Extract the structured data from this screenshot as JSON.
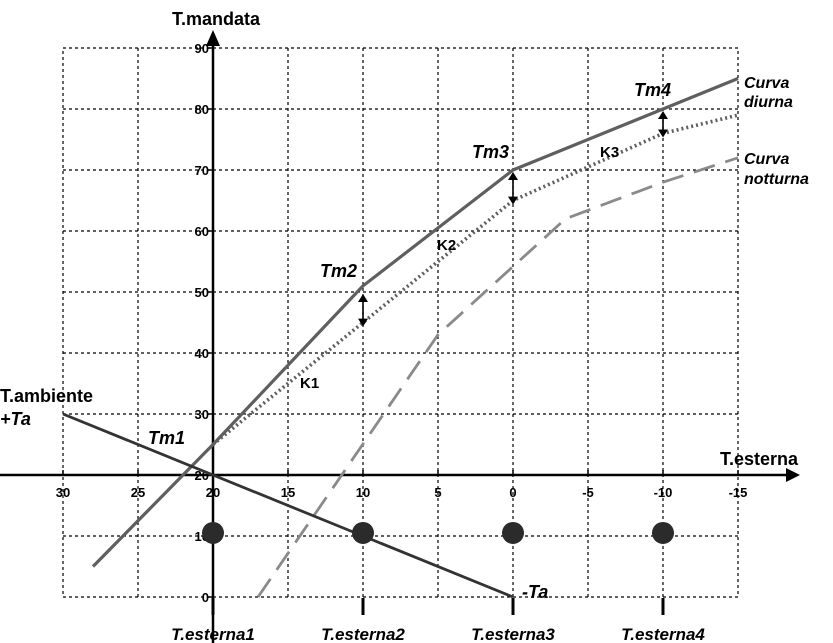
{
  "chart_data": {
    "type": "line",
    "y_axis_title": "T.mandata",
    "x_axis_title": "T.esterna",
    "y_ticks": [
      "0",
      "10",
      "20",
      "30",
      "40",
      "50",
      "60",
      "70",
      "80",
      "90"
    ],
    "x_ticks": [
      "30",
      "25",
      "20",
      "15",
      "10",
      "5",
      "0",
      "-5",
      "-10",
      "-15"
    ],
    "ambient_label": "T.ambiente",
    "plus_ta_label": "+Ta",
    "minus_ta_label": "-Ta",
    "curve_day_label": [
      "Curva",
      "diurna"
    ],
    "curve_night_label": [
      "Curva",
      "notturna"
    ],
    "point_labels": [
      "Tm1",
      "Tm2",
      "Tm3",
      "Tm4"
    ],
    "k_labels": [
      "K1",
      "K2",
      "K3"
    ],
    "bottom_labels": [
      "T.esterna1",
      "T.esterna2",
      "T.esterna3",
      "T.esterna4"
    ],
    "colors": {
      "day": "#5f5f5f",
      "ambient": "#333333",
      "night": "#8a8a8a",
      "marker": "#2b2b2b"
    },
    "series": [
      {
        "name": "Curva diurna",
        "style": "solid",
        "x": [
          28,
          20,
          10,
          0,
          -10,
          -15
        ],
        "y": [
          5,
          25,
          51,
          70,
          80,
          85
        ]
      },
      {
        "style": "dotted",
        "x": [
          20,
          10,
          0,
          -10,
          -15
        ],
        "y": [
          25,
          45,
          65,
          76,
          79
        ]
      },
      {
        "name": "Curva notturna",
        "style": "dashed",
        "x": [
          17,
          5,
          -3.5,
          -10,
          -15
        ],
        "y": [
          0,
          43,
          62,
          68,
          72
        ]
      },
      {
        "name": "T.ambiente",
        "style": "solid",
        "x": [
          30,
          10,
          0
        ],
        "y": [
          30,
          10,
          0
        ]
      }
    ],
    "k_arrows": [
      {
        "x": 10,
        "y_top": 50,
        "y_bottom": 44
      },
      {
        "x": 0,
        "y_top": 70,
        "y_bottom": 64
      },
      {
        "x": -10,
        "y_top": 80,
        "y_bottom": 75
      }
    ],
    "reference_points_x": [
      20,
      10,
      0,
      -10
    ]
  }
}
